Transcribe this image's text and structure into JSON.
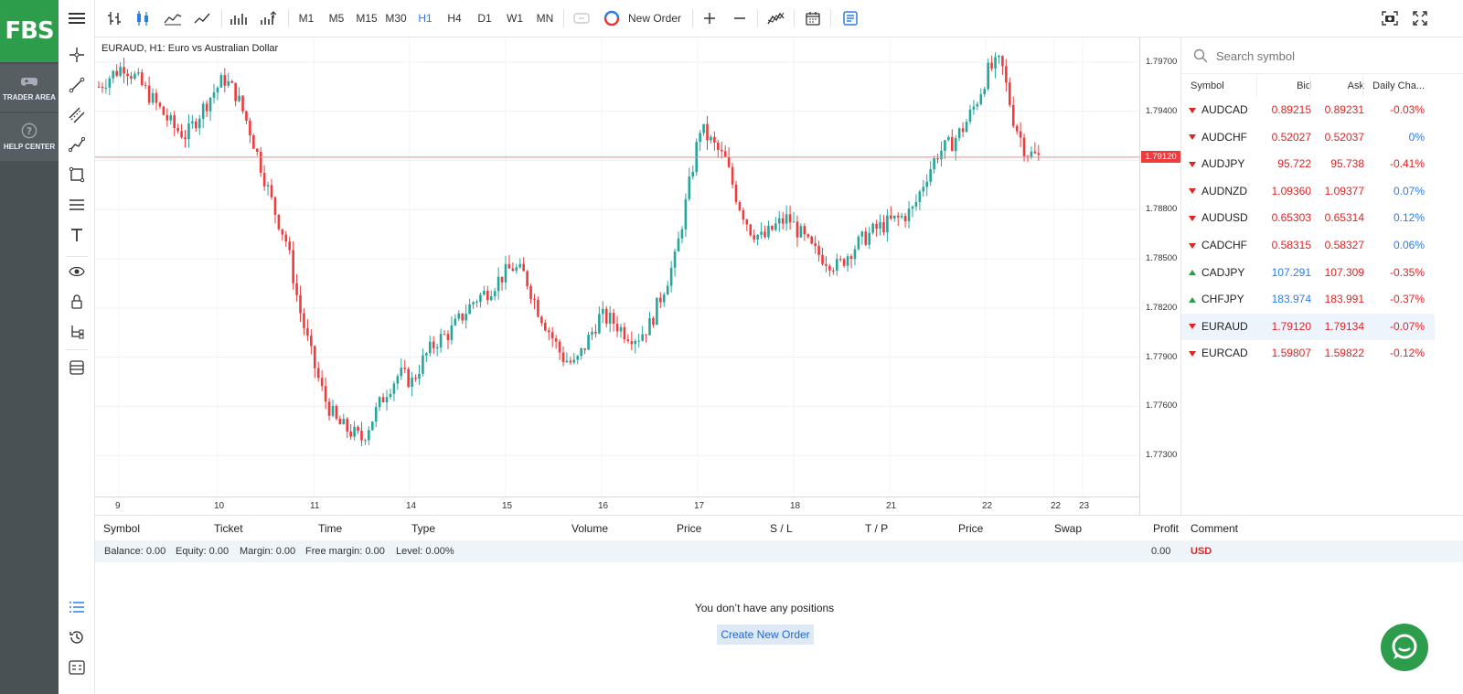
{
  "brand": {
    "logo_text": "FBS",
    "trader_area": "TRADER AREA",
    "help_center": "HELP CENTER",
    "color": "#2d9c4b"
  },
  "toolbar": {
    "timeframes": [
      "M1",
      "M5",
      "M15",
      "M30",
      "H1",
      "H4",
      "D1",
      "W1",
      "MN"
    ],
    "active_timeframe": "H1",
    "new_order_label": "New Order"
  },
  "chart": {
    "title": "EURAUD, H1: Euro vs Australian Dollar",
    "current_price_label": "1.79120",
    "price_ticks": [
      "1.79700",
      "1.79400",
      "1.79100",
      "1.78800",
      "1.78500",
      "1.78200",
      "1.77900",
      "1.77600",
      "1.77300"
    ],
    "time_ticks": [
      "9",
      "10",
      "11",
      "14",
      "15",
      "16",
      "17",
      "18",
      "21",
      "22",
      "22",
      "23"
    ],
    "up_color": "#26a69a",
    "down_color": "#ef3b3b"
  },
  "chart_data": {
    "type": "candlestick",
    "title": "EURAUD, H1: Euro vs Australian Dollar",
    "symbol": "EURAUD",
    "timeframe": "H1",
    "x_ticks": [
      "9",
      "10",
      "11",
      "14",
      "15",
      "16",
      "17",
      "18",
      "21",
      "22",
      "22",
      "23"
    ],
    "y_ticks": [
      1.797,
      1.794,
      1.791,
      1.788,
      1.785,
      1.782,
      1.779,
      1.776,
      1.773
    ],
    "current_price": 1.7912,
    "close_path": [
      1.7955,
      1.7962,
      1.7968,
      1.796,
      1.795,
      1.794,
      1.793,
      1.7925,
      1.7938,
      1.795,
      1.796,
      1.795,
      1.793,
      1.7905,
      1.788,
      1.786,
      1.782,
      1.779,
      1.7765,
      1.775,
      1.7745,
      1.774,
      1.7755,
      1.777,
      1.778,
      1.7775,
      1.779,
      1.78,
      1.7805,
      1.7815,
      1.7825,
      1.783,
      1.7838,
      1.7845,
      1.784,
      1.782,
      1.7805,
      1.779,
      1.7785,
      1.78,
      1.7815,
      1.7812,
      1.7805,
      1.7802,
      1.781,
      1.783,
      1.785,
      1.789,
      1.793,
      1.792,
      1.791,
      1.7885,
      1.7868,
      1.7862,
      1.787,
      1.7875,
      1.7865,
      1.7855,
      1.785,
      1.7845,
      1.7855,
      1.7862,
      1.7868,
      1.7872,
      1.7875,
      1.788,
      1.79,
      1.7915,
      1.792,
      1.793,
      1.7945,
      1.7965,
      1.797,
      1.7935,
      1.7915,
      1.7912
    ]
  },
  "search": {
    "placeholder": "Search symbol"
  },
  "watchlist": {
    "headers": [
      "Symbol",
      "Bid",
      "Ask",
      "Daily Cha..."
    ],
    "rows": [
      {
        "symbol": "AUDCAD",
        "bid": "0.89215",
        "ask": "0.89231",
        "change": "-0.03%",
        "dir": "down",
        "bid_color": "red",
        "change_color": "red"
      },
      {
        "symbol": "AUDCHF",
        "bid": "0.52027",
        "ask": "0.52037",
        "change": "0%",
        "dir": "down",
        "bid_color": "red",
        "change_color": "blue"
      },
      {
        "symbol": "AUDJPY",
        "bid": "95.722",
        "ask": "95.738",
        "change": "-0.41%",
        "dir": "down",
        "bid_color": "red",
        "change_color": "red"
      },
      {
        "symbol": "AUDNZD",
        "bid": "1.09360",
        "ask": "1.09377",
        "change": "0.07%",
        "dir": "down",
        "bid_color": "red",
        "change_color": "blue"
      },
      {
        "symbol": "AUDUSD",
        "bid": "0.65303",
        "ask": "0.65314",
        "change": "0.12%",
        "dir": "down",
        "bid_color": "red",
        "change_color": "blue"
      },
      {
        "symbol": "CADCHF",
        "bid": "0.58315",
        "ask": "0.58327",
        "change": "0.06%",
        "dir": "down",
        "bid_color": "red",
        "change_color": "blue"
      },
      {
        "symbol": "CADJPY",
        "bid": "107.291",
        "ask": "107.309",
        "change": "-0.35%",
        "dir": "up",
        "bid_color": "blue",
        "change_color": "red"
      },
      {
        "symbol": "CHFJPY",
        "bid": "183.974",
        "ask": "183.991",
        "change": "-0.37%",
        "dir": "up",
        "bid_color": "blue",
        "change_color": "red"
      },
      {
        "symbol": "EURAUD",
        "bid": "1.79120",
        "ask": "1.79134",
        "change": "-0.07%",
        "dir": "down",
        "bid_color": "red",
        "change_color": "red",
        "selected": true
      },
      {
        "symbol": "EURCAD",
        "bid": "1.59807",
        "ask": "1.59822",
        "change": "-0.12%",
        "dir": "down",
        "bid_color": "red",
        "change_color": "red"
      }
    ]
  },
  "positions": {
    "headers": [
      "Symbol",
      "Ticket",
      "Time",
      "Type",
      "Volume",
      "Price",
      "S / L",
      "T / P",
      "Price",
      "Swap",
      "Profit",
      "Comment"
    ],
    "balance": "Balance: 0.00",
    "equity": "Equity: 0.00",
    "margin": "Margin: 0.00",
    "free_margin": "Free margin: 0.00",
    "level": "Level: 0.00%",
    "profit_total": "0.00",
    "currency": "USD",
    "empty_message": "You don’t have any positions",
    "create_order_label": "Create New Order"
  }
}
